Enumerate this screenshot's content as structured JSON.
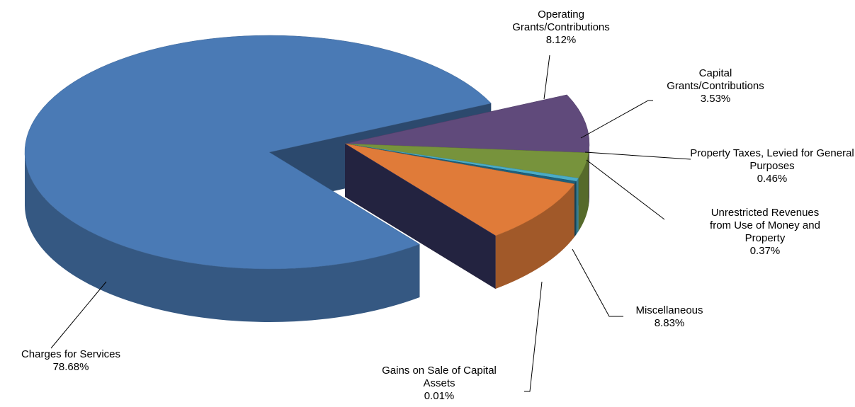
{
  "chart_data": {
    "type": "pie",
    "categories": [
      "Charges for Services",
      "Operating Grants/Contributions",
      "Capital Grants/Contributions",
      "Property Taxes, Levied for General Purposes",
      "Unrestricted Revenues from Use of Money and Property",
      "Miscellaneous",
      "Gains on Sale of Capital Assets"
    ],
    "values": [
      78.68,
      8.12,
      3.53,
      0.46,
      0.37,
      8.83,
      0.01
    ],
    "value_labels": [
      "78.68%",
      "8.12%",
      "3.53%",
      "0.46%",
      "0.37%",
      "8.83%",
      "0.01%"
    ],
    "colors": [
      "#4a7ab5",
      "#604a7b",
      "#77933c",
      "#4bacc6",
      "#1f5f7a",
      "#e07b39",
      "#3b3b6b"
    ]
  }
}
